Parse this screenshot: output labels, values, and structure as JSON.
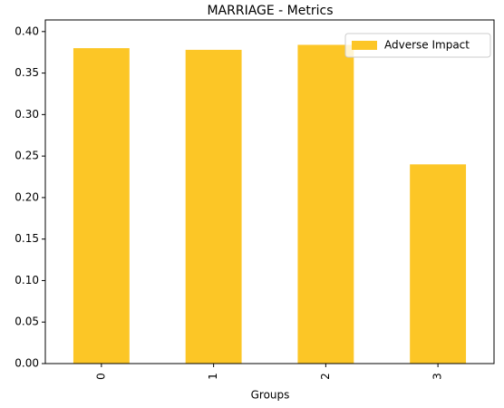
{
  "chart_data": {
    "type": "bar",
    "title": "MARRIAGE - Metrics",
    "x_label": "Groups",
    "categories": [
      "0",
      "1",
      "2",
      "3"
    ],
    "series": [
      {
        "name": "Adverse Impact",
        "color": "#fcc626",
        "values": [
          0.38,
          0.378,
          0.384,
          0.24
        ]
      }
    ],
    "ylim": [
      0,
      0.414
    ],
    "yticks": [
      {
        "value": 0,
        "label": "0.00"
      },
      {
        "value": 0.05,
        "label": "0.05"
      },
      {
        "value": 0.1,
        "label": "0.10"
      },
      {
        "value": 0.15,
        "label": "0.15"
      },
      {
        "value": 0.2,
        "label": "0.20"
      },
      {
        "value": 0.25,
        "label": "0.25"
      },
      {
        "value": 0.3,
        "label": "0.30"
      },
      {
        "value": 0.35,
        "label": "0.35"
      },
      {
        "value": 0.4,
        "label": "0.40"
      }
    ],
    "legend": "upper right"
  }
}
